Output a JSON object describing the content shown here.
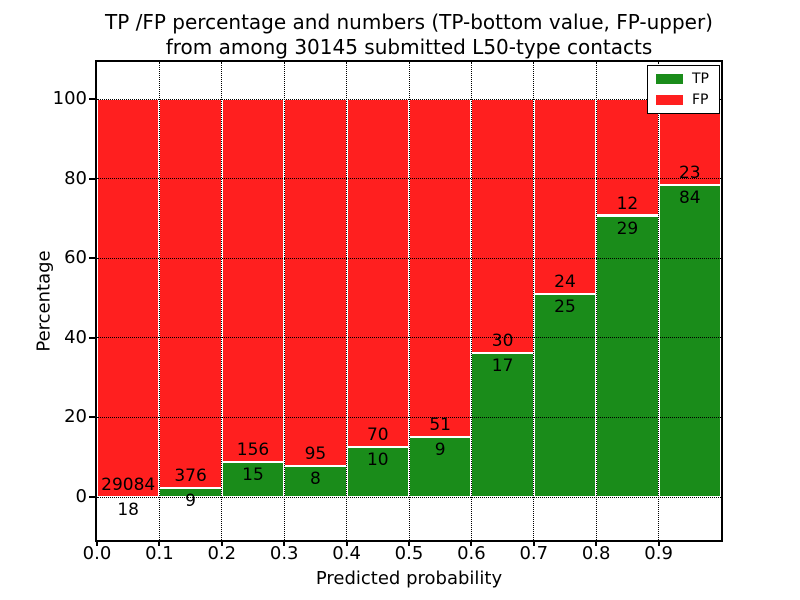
{
  "chart_data": {
    "type": "bar",
    "stacked": true,
    "title": "TP /FP percentage and numbers (TP-bottom value, FP-upper)\nfrom among 30145 submitted L50-type contacts",
    "title_line1": "TP /FP percentage and numbers (TP-bottom value, FP-upper)",
    "title_line2": "from among 30145 submitted L50-type contacts",
    "total_submitted": "30145",
    "xlabel": "Predicted probability",
    "ylabel": "Percentage",
    "xlim": [
      0.0,
      1.0
    ],
    "ylim": [
      -10.8,
      109.3
    ],
    "grid": "dotted",
    "legend_position": "upper right",
    "bins": {
      "start": 0.0,
      "end": 1.0,
      "count": 10,
      "width": 0.1
    },
    "xtick_values": [
      0.0,
      0.1,
      0.2,
      0.3,
      0.4,
      0.5,
      0.6,
      0.7,
      0.8,
      0.9
    ],
    "xtick_labels": [
      "0.0",
      "0.1",
      "0.2",
      "0.3",
      "0.4",
      "0.5",
      "0.6",
      "0.7",
      "0.8",
      "0.9"
    ],
    "ytick_values": [
      0,
      20,
      40,
      60,
      80,
      100
    ],
    "ytick_labels": [
      "0",
      "20",
      "40",
      "60",
      "80",
      "100"
    ],
    "series": [
      {
        "name": "TP",
        "color": "#1a8c1a",
        "counts": [
          18,
          9,
          15,
          8,
          10,
          9,
          17,
          25,
          29,
          84
        ],
        "percent": [
          0.06,
          2.34,
          8.77,
          7.77,
          12.5,
          15.0,
          36.17,
          51.02,
          70.73,
          78.5
        ]
      },
      {
        "name": "FP",
        "color": "#ff1f1f",
        "counts": [
          29084,
          376,
          156,
          95,
          70,
          51,
          30,
          24,
          12,
          23
        ],
        "percent": [
          99.94,
          97.66,
          91.23,
          92.23,
          87.5,
          85.0,
          63.83,
          48.98,
          29.27,
          21.5
        ]
      }
    ],
    "legend": [
      {
        "label": "TP",
        "color": "#1a8c1a"
      },
      {
        "label": "FP",
        "color": "#ff1f1f"
      }
    ]
  }
}
